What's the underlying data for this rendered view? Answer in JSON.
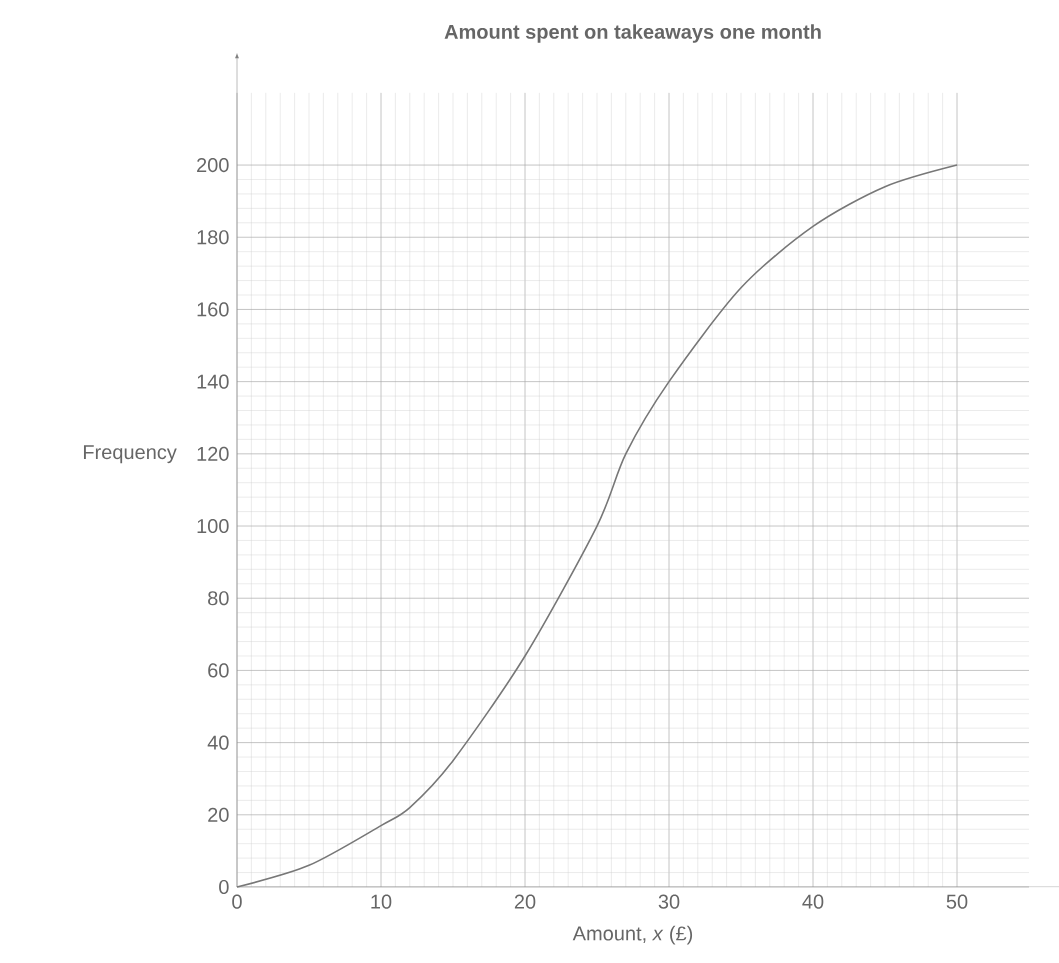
{
  "chart_data": {
    "type": "line",
    "title": "Amount spent on takeaways one month",
    "xlabel": "Amount, *x* (£)",
    "ylabel": "Frequency",
    "x": [
      0,
      5,
      10,
      12,
      15,
      20,
      25,
      27,
      30,
      35,
      40,
      45,
      50
    ],
    "series": [
      {
        "color": "#777777",
        "values": [
          0,
          6,
          17,
          22,
          35,
          64,
          100,
          120,
          140,
          166,
          183,
          194,
          200
        ]
      }
    ],
    "xlim": [
      0,
      55
    ],
    "ylim": [
      0,
      220
    ],
    "xticks": [
      0,
      10,
      20,
      30,
      40,
      50
    ],
    "yticks": [
      0,
      20,
      40,
      60,
      80,
      100,
      120,
      140,
      160,
      180,
      200
    ],
    "grid": true,
    "marker": "none",
    "line_style": "solid"
  }
}
